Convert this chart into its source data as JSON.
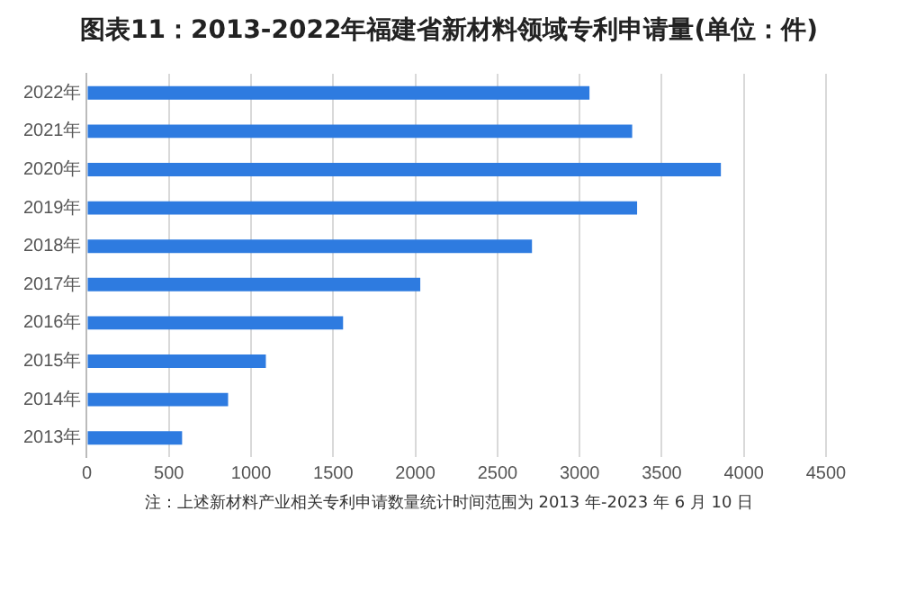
{
  "chart_data": {
    "type": "bar",
    "orientation": "horizontal",
    "title": "图表11：2013-2022年福建省新材料领域专利申请量(单位：件)",
    "categories": [
      "2022年",
      "2021年",
      "2020年",
      "2019年",
      "2018年",
      "2017年",
      "2016年",
      "2015年",
      "2014年",
      "2013年"
    ],
    "values": [
      3060,
      3320,
      3860,
      3350,
      2710,
      2030,
      1560,
      1090,
      860,
      580
    ],
    "color": "#2e7be0",
    "xlim": [
      0,
      4500
    ],
    "xticks": [
      0,
      500,
      1000,
      1500,
      2000,
      2500,
      3000,
      3500,
      4000,
      4500
    ],
    "grid": "x",
    "legend": false,
    "annotations": [
      "注：上述新材料产业相关专利申请数量统计时间范围为 2013 年-2023 年 6 月 10 日"
    ]
  }
}
